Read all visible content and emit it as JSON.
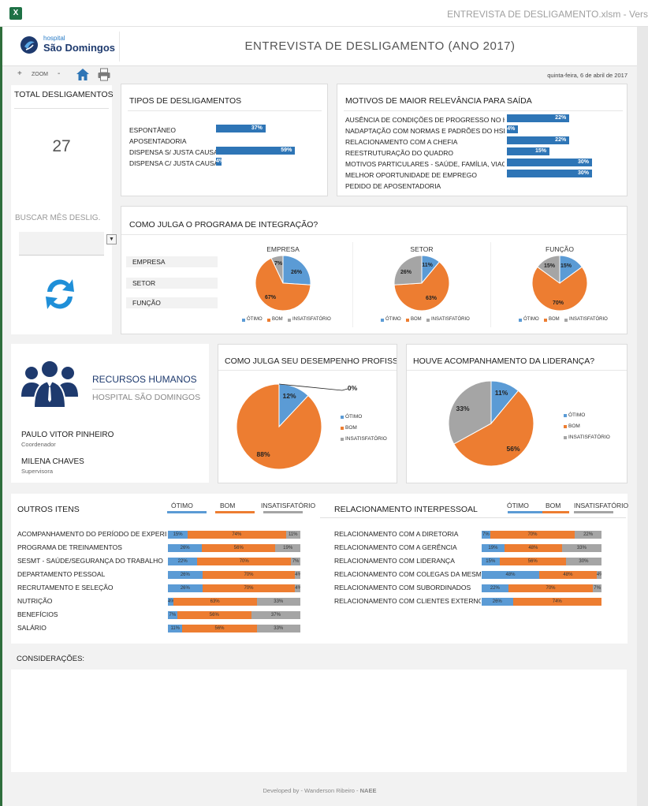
{
  "window": {
    "title": "ENTREVISTA DE DESLIGAMENTO.xlsm - Vers"
  },
  "header": {
    "logo_small": "hospital",
    "logo_big": "São Domingos",
    "title": "ENTREVISTA DE DESLIGAMENTO (ANO 2017)"
  },
  "toolbar": {
    "plus": "+",
    "zoom": "ZOOM",
    "minus": "-",
    "date": "quinta-feira, 6 de abril de 2017"
  },
  "total": {
    "title": "TOTAL DESLIGAMENTOS",
    "value": "27",
    "search_label": "BUSCAR MÊS DESLIG.",
    "dropdown_value": ""
  },
  "tipos": {
    "title": "TIPOS DE DESLIGAMENTOS",
    "items": [
      {
        "label": "ESPONTÂNEO",
        "value": 37,
        "text": "37%"
      },
      {
        "label": "APOSENTADORIA",
        "value": 0,
        "text": ""
      },
      {
        "label": "DISPENSA S/ JUSTA CAUSA",
        "value": 59,
        "text": "59%"
      },
      {
        "label": "DISPENSA C/ JUSTA CAUSA",
        "value": 4,
        "text": "4%"
      }
    ]
  },
  "motivos": {
    "title": "MOTIVOS DE MAIOR RELEVÂNCIA PARA SAÍDA",
    "items": [
      {
        "label": "AUSÊNCIA DE CONDIÇÕES DE PROGRESSO NO HSD",
        "value": 22,
        "text": "22%"
      },
      {
        "label": "NADAPTAÇÃO COM NORMAS E PADRÕES DO HSD",
        "value": 4,
        "text": "4%"
      },
      {
        "label": "RELACIONAMENTO COM A CHEFIA",
        "value": 22,
        "text": "22%"
      },
      {
        "label": "REESTRUTURAÇÃO DO QUADRO",
        "value": 15,
        "text": "15%"
      },
      {
        "label": "MOTIVOS PARTICULARES - SAÚDE, FAMÍLIA, VIAGEM",
        "value": 30,
        "text": "30%"
      },
      {
        "label": "MELHOR OPORTUNIDADE DE EMPREGO",
        "value": 30,
        "text": "30%"
      },
      {
        "label": "PEDIDO DE APOSENTADORIA",
        "value": 0,
        "text": ""
      }
    ]
  },
  "integracao": {
    "title": "COMO JULGA O PROGRAMA DE INTEGRAÇÃO?",
    "side_labels": [
      "EMPRESA",
      "SETOR",
      "FUNÇÃO"
    ],
    "legend": [
      "ÓTIMO",
      "BOM",
      "INSATISFATÓRIO"
    ],
    "charts": [
      {
        "title": "EMPRESA",
        "values": [
          26,
          67,
          7
        ],
        "labels": [
          "26%",
          "67%",
          "7%"
        ]
      },
      {
        "title": "SETOR",
        "values": [
          11,
          63,
          26
        ],
        "labels": [
          "11%",
          "63%",
          "26%"
        ]
      },
      {
        "title": "FUNÇÃO",
        "values": [
          15,
          70,
          15
        ],
        "labels": [
          "15%",
          "70%",
          "15%"
        ]
      }
    ]
  },
  "rh": {
    "title": "RECURSOS HUMANOS",
    "subtitle": "HOSPITAL SÃO DOMINGOS",
    "people": [
      {
        "name": "PAULO VITOR PINHEIRO",
        "role": "Coordenador"
      },
      {
        "name": "MILENA CHAVES",
        "role": "Supervisora"
      }
    ]
  },
  "desempenho": {
    "title": "COMO JULGA SEU DESEMPENHO PROFISSIONAL?",
    "legend": [
      "ÓTIMO",
      "BOM",
      "INSATISFATÓRIO"
    ],
    "values": [
      12,
      88,
      0
    ],
    "labels": [
      "12%",
      "88%",
      "0%"
    ]
  },
  "lideranca": {
    "title": "HOUVE ACOMPANHAMENTO DA LIDERANÇA?",
    "legend": [
      "ÓTIMO",
      "BOM",
      "INSATISFATÓRIO"
    ],
    "values": [
      11,
      56,
      33
    ],
    "labels": [
      "11%",
      "56%",
      "33%"
    ]
  },
  "outros": {
    "title": "OUTROS ITENS",
    "legend": [
      "ÓTIMO",
      "BOM",
      "INSATISFATÓRIO"
    ],
    "rows": [
      {
        "label": "ACOMPANHAMENTO DO PERÍODO DE EXPERIÊNCIA",
        "values": [
          15,
          74,
          11
        ],
        "labels": [
          "15%",
          "74%",
          "11%"
        ]
      },
      {
        "label": "PROGRAMA DE TREINAMENTOS",
        "values": [
          26,
          56,
          19
        ],
        "labels": [
          "26%",
          "56%",
          "19%"
        ]
      },
      {
        "label": "SESMT - SAÚDE/SEGURANÇA DO TRABALHO",
        "values": [
          22,
          70,
          7
        ],
        "labels": [
          "22%",
          "70%",
          "7%"
        ]
      },
      {
        "label": "DEPARTAMENTO PESSOAL",
        "values": [
          26,
          70,
          4
        ],
        "labels": [
          "26%",
          "70%",
          "4%"
        ]
      },
      {
        "label": "RECRUTAMENTO E SELEÇÃO",
        "values": [
          26,
          70,
          4
        ],
        "labels": [
          "26%",
          "70%",
          "4%"
        ]
      },
      {
        "label": "NUTRIÇÃO",
        "values": [
          4,
          63,
          33
        ],
        "labels": [
          "4%",
          "63%",
          "33%"
        ]
      },
      {
        "label": "BENEFÍCIOS",
        "values": [
          7,
          56,
          37
        ],
        "labels": [
          "7%",
          "56%",
          "37%"
        ]
      },
      {
        "label": "SALÁRIO",
        "values": [
          11,
          56,
          33
        ],
        "labels": [
          "11%",
          "56%",
          "33%"
        ]
      }
    ]
  },
  "interpessoal": {
    "title": "RELACIONAMENTO INTERPESSOAL",
    "legend": [
      "ÓTIMO",
      "BOM",
      "INSATISFATÓRIO"
    ],
    "rows": [
      {
        "label": "RELACIONAMENTO COM A DIRETORIA",
        "values": [
          7,
          70,
          22
        ],
        "labels": [
          "7%",
          "70%",
          "22%"
        ]
      },
      {
        "label": "RELACIONAMENTO COM A GERÊNCIA",
        "values": [
          19,
          48,
          33
        ],
        "labels": [
          "19%",
          "48%",
          "33%"
        ]
      },
      {
        "label": "RELACIONAMENTO COM LIDERANÇA",
        "values": [
          15,
          56,
          30
        ],
        "labels": [
          "15%",
          "56%",
          "30%"
        ]
      },
      {
        "label": "RELACIONAMENTO COM COLEGAS DA MESMA EQUIPE",
        "values": [
          48,
          48,
          4
        ],
        "labels": [
          "48%",
          "48%",
          "4%"
        ]
      },
      {
        "label": "RELACIONAMENTO COM SUBORDINADOS",
        "values": [
          22,
          70,
          7
        ],
        "labels": [
          "22%",
          "70%",
          "7%"
        ]
      },
      {
        "label": "RELACIONAMENTO COM CLIENTES EXTERNOS",
        "values": [
          26,
          74,
          0
        ],
        "labels": [
          "26%",
          "74%",
          "0%"
        ]
      }
    ]
  },
  "consideracoes": {
    "title": "CONSIDERAÇÕES:",
    "text": ""
  },
  "footer": {
    "text": "Developed by - Wanderson Ribeiro - ",
    "strong": "NAEE"
  },
  "colors": {
    "otimo": "#5b9bd5",
    "bom": "#ed7d31",
    "insat": "#a5a5a5",
    "bar": "#2e75b6"
  },
  "chart_data": [
    {
      "type": "bar",
      "title": "TIPOS DE DESLIGAMENTOS",
      "categories": [
        "ESPONTÂNEO",
        "APOSENTADORIA",
        "DISPENSA S/ JUSTA CAUSA",
        "DISPENSA C/ JUSTA CAUSA"
      ],
      "values": [
        37,
        0,
        59,
        4
      ]
    },
    {
      "type": "bar",
      "title": "MOTIVOS DE MAIOR RELEVÂNCIA PARA SAÍDA",
      "categories": [
        "AUSÊNCIA DE CONDIÇÕES DE PROGRESSO NO HSD",
        "NADAPTAÇÃO COM NORMAS E PADRÕES DO HSD",
        "RELACIONAMENTO COM A CHEFIA",
        "REESTRUTURAÇÃO DO QUADRO",
        "MOTIVOS PARTICULARES - SAÚDE, FAMÍLIA, VIAGEM",
        "MELHOR OPORTUNIDADE DE EMPREGO",
        "PEDIDO DE APOSENTADORIA"
      ],
      "values": [
        22,
        4,
        22,
        15,
        30,
        30,
        0
      ]
    },
    {
      "type": "pie",
      "title": "EMPRESA",
      "categories": [
        "ÓTIMO",
        "BOM",
        "INSATISFATÓRIO"
      ],
      "values": [
        26,
        67,
        7
      ]
    },
    {
      "type": "pie",
      "title": "SETOR",
      "categories": [
        "ÓTIMO",
        "BOM",
        "INSATISFATÓRIO"
      ],
      "values": [
        11,
        63,
        26
      ]
    },
    {
      "type": "pie",
      "title": "FUNÇÃO",
      "categories": [
        "ÓTIMO",
        "BOM",
        "INSATISFATÓRIO"
      ],
      "values": [
        15,
        70,
        15
      ]
    },
    {
      "type": "pie",
      "title": "COMO JULGA SEU DESEMPENHO PROFISSIONAL?",
      "categories": [
        "ÓTIMO",
        "BOM",
        "INSATISFATÓRIO"
      ],
      "values": [
        12,
        88,
        0
      ]
    },
    {
      "type": "pie",
      "title": "HOUVE ACOMPANHAMENTO DA LIDERANÇA?",
      "categories": [
        "ÓTIMO",
        "BOM",
        "INSATISFATÓRIO"
      ],
      "values": [
        11,
        56,
        33
      ]
    }
  ]
}
